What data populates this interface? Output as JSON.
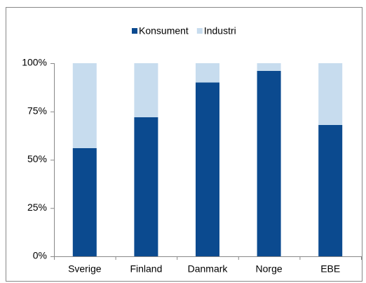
{
  "chart_data": {
    "type": "stacked_bar",
    "categories": [
      "Sverige",
      "Finland",
      "Danmark",
      "Norge",
      "EBE"
    ],
    "series": [
      {
        "name": "Konsument",
        "color": "#0b4a8f",
        "values": [
          56,
          72,
          90,
          96,
          68
        ]
      },
      {
        "name": "Industri",
        "color": "#c7dcee",
        "values": [
          44,
          28,
          10,
          4,
          32
        ]
      }
    ],
    "ylim": [
      0,
      100
    ],
    "yticks": [
      {
        "value": 0,
        "label": "0%"
      },
      {
        "value": 25,
        "label": "25%"
      },
      {
        "value": 50,
        "label": "50%"
      },
      {
        "value": 75,
        "label": "75%"
      },
      {
        "value": 100,
        "label": "100%"
      }
    ],
    "legend": "top",
    "grid": false
  }
}
